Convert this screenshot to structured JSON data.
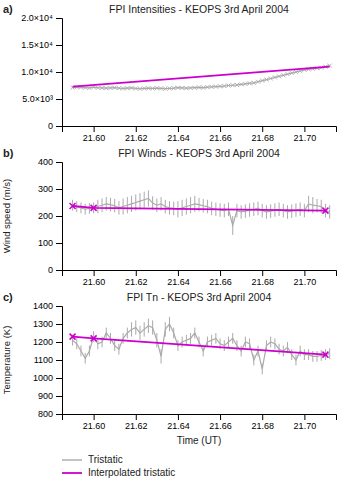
{
  "chart_data": [
    {
      "type": "line",
      "title": "FPI Intensities - KEOPS 3rd April 2004",
      "annotations": [
        "a)"
      ],
      "xlim": [
        21.585,
        21.715
      ],
      "xticks": [
        {
          "value": 21.6,
          "label": "21.60"
        },
        {
          "value": 21.62,
          "label": "21.62"
        },
        {
          "value": 21.64,
          "label": "21.64"
        },
        {
          "value": 21.66,
          "label": "21.66"
        },
        {
          "value": 21.68,
          "label": "21.68"
        },
        {
          "value": 21.7,
          "label": "21.70"
        }
      ],
      "ylim": [
        0,
        20000
      ],
      "yticks": [
        0,
        {
          "value": 5000,
          "label": "5.0×10³"
        },
        {
          "value": 10000,
          "label": "1.0×10⁴"
        },
        {
          "value": 15000,
          "label": "1.5×10⁴"
        },
        {
          "value": 20000,
          "label": "2.0×10⁴"
        }
      ],
      "series": [
        {
          "color": "#aaaaaa",
          "marker": "x",
          "x": [
            21.59,
            21.592,
            21.594,
            21.596,
            21.598,
            21.6,
            21.602,
            21.604,
            21.606,
            21.608,
            21.61,
            21.612,
            21.614,
            21.616,
            21.618,
            21.62,
            21.622,
            21.624,
            21.626,
            21.628,
            21.63,
            21.632,
            21.634,
            21.636,
            21.638,
            21.64,
            21.642,
            21.644,
            21.646,
            21.648,
            21.65,
            21.652,
            21.654,
            21.656,
            21.658,
            21.66,
            21.662,
            21.664,
            21.666,
            21.668,
            21.67,
            21.672,
            21.674,
            21.676,
            21.678,
            21.68,
            21.682,
            21.684,
            21.686,
            21.688,
            21.69,
            21.692,
            21.694,
            21.696,
            21.698,
            21.7,
            21.702,
            21.704,
            21.706,
            21.708,
            21.71,
            21.712
          ],
          "values": [
            7100,
            7200,
            7150,
            7100,
            7050,
            7200,
            7100,
            7050,
            7000,
            7050,
            7100,
            7000,
            6950,
            7000,
            7050,
            6950,
            6900,
            6950,
            7000,
            6950,
            7000,
            6950,
            6900,
            6950,
            7000,
            7100,
            7050,
            7000,
            7050,
            7100,
            7150,
            7100,
            7200,
            7250,
            7300,
            7350,
            7400,
            7500,
            7550,
            7600,
            7700,
            7800,
            7900,
            8000,
            8200,
            8400,
            8600,
            8800,
            9000,
            9200,
            9400,
            9600,
            9800,
            10000,
            10200,
            10400,
            10500,
            10600,
            10700,
            10800,
            11000,
            11200
          ]
        },
        {
          "color": "#cc00cc",
          "x": [
            21.59,
            21.712
          ],
          "values": [
            7300,
            11000
          ]
        }
      ]
    },
    {
      "type": "line",
      "title": "FPI Winds - KEOPS 3rd April 2004",
      "y_label": "Wind speed (m/s)",
      "annotations": [
        "b)"
      ],
      "xlim": [
        21.585,
        21.715
      ],
      "xticks": [
        {
          "value": 21.6,
          "label": "21.60"
        },
        {
          "value": 21.62,
          "label": "21.62"
        },
        {
          "value": 21.64,
          "label": "21.64"
        },
        {
          "value": 21.66,
          "label": "21.66"
        },
        {
          "value": 21.68,
          "label": "21.68"
        },
        {
          "value": 21.7,
          "label": "21.70"
        }
      ],
      "ylim": [
        0,
        400
      ],
      "yticks": [
        0,
        100,
        200,
        300,
        400
      ],
      "series": [
        {
          "color": "#aaaaaa",
          "x": [
            21.59,
            21.592,
            21.594,
            21.596,
            21.598,
            21.6,
            21.602,
            21.604,
            21.606,
            21.608,
            21.61,
            21.612,
            21.614,
            21.616,
            21.618,
            21.62,
            21.622,
            21.624,
            21.626,
            21.628,
            21.63,
            21.632,
            21.634,
            21.636,
            21.638,
            21.64,
            21.642,
            21.644,
            21.646,
            21.648,
            21.65,
            21.652,
            21.654,
            21.656,
            21.658,
            21.66,
            21.662,
            21.664,
            21.666,
            21.668,
            21.67,
            21.672,
            21.674,
            21.676,
            21.678,
            21.68,
            21.682,
            21.684,
            21.686,
            21.688,
            21.69,
            21.692,
            21.694,
            21.696,
            21.698,
            21.7,
            21.702,
            21.704,
            21.706,
            21.708,
            21.71,
            21.712
          ],
          "values": [
            240,
            235,
            230,
            225,
            228,
            230,
            235,
            240,
            245,
            242,
            238,
            230,
            235,
            240,
            245,
            250,
            255,
            260,
            265,
            248,
            240,
            245,
            235,
            230,
            228,
            225,
            230,
            235,
            240,
            245,
            242,
            238,
            235,
            228,
            225,
            222,
            220,
            225,
            165,
            220,
            215,
            218,
            222,
            225,
            228,
            220,
            215,
            218,
            222,
            225,
            220,
            215,
            218,
            222,
            225,
            220,
            245,
            240,
            238,
            235,
            220,
            215
          ],
          "errors": [
            20,
            20,
            20,
            20,
            20,
            20,
            25,
            25,
            25,
            25,
            25,
            25,
            30,
            30,
            30,
            30,
            30,
            30,
            30,
            25,
            25,
            25,
            25,
            25,
            25,
            30,
            30,
            30,
            30,
            30,
            25,
            25,
            25,
            25,
            25,
            25,
            25,
            25,
            35,
            25,
            25,
            25,
            25,
            25,
            25,
            25,
            25,
            25,
            25,
            25,
            25,
            25,
            25,
            25,
            25,
            25,
            30,
            30,
            25,
            25,
            25,
            25
          ]
        },
        {
          "color": "#cc00cc",
          "marker": "x",
          "x": [
            21.59,
            21.6,
            21.71
          ],
          "values": [
            237,
            230,
            220
          ]
        }
      ]
    },
    {
      "type": "line",
      "title": "FPI Tn - KEOPS 3rd April 2004",
      "x_label": "Time (UT)",
      "y_label": "Temperature (K)",
      "annotations": [
        "c)"
      ],
      "legend": "lower left",
      "xlim": [
        21.585,
        21.715
      ],
      "xticks": [
        {
          "value": 21.6,
          "label": "21.60"
        },
        {
          "value": 21.62,
          "label": "21.62"
        },
        {
          "value": 21.64,
          "label": "21.64"
        },
        {
          "value": 21.66,
          "label": "21.66"
        },
        {
          "value": 21.68,
          "label": "21.68"
        },
        {
          "value": 21.7,
          "label": "21.70"
        }
      ],
      "ylim": [
        800,
        1400
      ],
      "yticks": [
        800,
        900,
        1000,
        1100,
        1200,
        1300,
        1400
      ],
      "series": [
        {
          "name": "Tristatic",
          "color": "#aaaaaa",
          "x": [
            21.59,
            21.592,
            21.594,
            21.596,
            21.598,
            21.6,
            21.602,
            21.604,
            21.606,
            21.608,
            21.61,
            21.612,
            21.614,
            21.616,
            21.618,
            21.62,
            21.622,
            21.624,
            21.626,
            21.628,
            21.63,
            21.632,
            21.634,
            21.636,
            21.638,
            21.64,
            21.642,
            21.644,
            21.646,
            21.648,
            21.65,
            21.652,
            21.654,
            21.656,
            21.658,
            21.66,
            21.662,
            21.664,
            21.666,
            21.668,
            21.67,
            21.672,
            21.674,
            21.676,
            21.678,
            21.68,
            21.682,
            21.684,
            21.686,
            21.688,
            21.69,
            21.692,
            21.694,
            21.696,
            21.698,
            21.7,
            21.702,
            21.704,
            21.706,
            21.708,
            21.71,
            21.712
          ],
          "values": [
            1210,
            1190,
            1150,
            1110,
            1150,
            1230,
            1190,
            1200,
            1250,
            1220,
            1180,
            1160,
            1220,
            1250,
            1270,
            1280,
            1250,
            1270,
            1290,
            1280,
            1210,
            1120,
            1270,
            1300,
            1250,
            1180,
            1200,
            1210,
            1220,
            1250,
            1200,
            1150,
            1200,
            1210,
            1220,
            1190,
            1180,
            1200,
            1220,
            1180,
            1150,
            1200,
            1190,
            1100,
            1150,
            1050,
            1180,
            1200,
            1190,
            1160,
            1150,
            1170,
            1130,
            1100,
            1150,
            1130,
            1130,
            1120,
            1120,
            1125,
            1130,
            1135
          ],
          "errors": [
            30,
            30,
            30,
            30,
            30,
            30,
            30,
            30,
            30,
            30,
            30,
            30,
            30,
            30,
            40,
            40,
            40,
            40,
            40,
            40,
            40,
            40,
            40,
            40,
            30,
            30,
            30,
            30,
            30,
            30,
            30,
            30,
            30,
            30,
            30,
            30,
            30,
            30,
            30,
            30,
            30,
            30,
            30,
            30,
            30,
            30,
            30,
            30,
            30,
            30,
            30,
            30,
            30,
            30,
            30,
            30,
            30,
            30,
            30,
            30,
            30,
            30
          ]
        },
        {
          "name": "Interpolated tristatic",
          "color": "#cc00cc",
          "marker": "x",
          "x": [
            21.59,
            21.6,
            21.71
          ],
          "values": [
            1230,
            1220,
            1130
          ]
        }
      ]
    }
  ]
}
